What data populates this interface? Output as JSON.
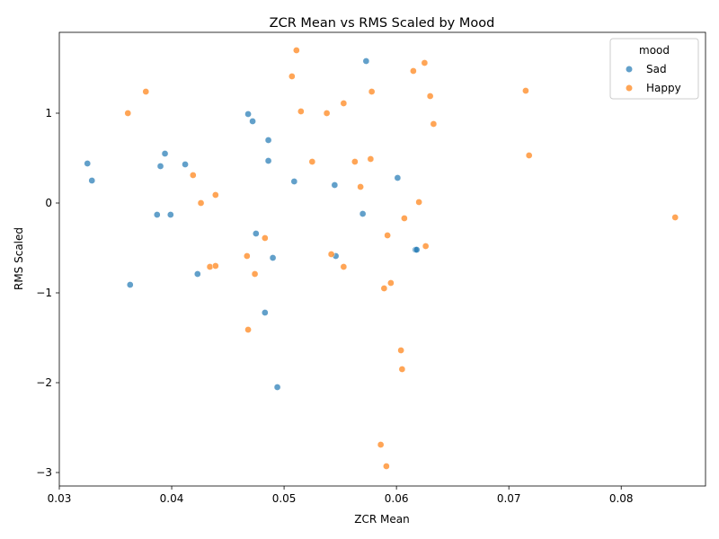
{
  "chart_data": {
    "type": "scatter",
    "title": "ZCR Mean vs RMS Scaled by Mood",
    "xlabel": "ZCR Mean",
    "ylabel": "RMS Scaled",
    "xlim": [
      0.03,
      0.0875
    ],
    "ylim": [
      -3.15,
      1.9
    ],
    "xticks": [
      0.03,
      0.04,
      0.05,
      0.06,
      0.07,
      0.08
    ],
    "xtick_labels": [
      "0.03",
      "0.04",
      "0.05",
      "0.06",
      "0.07",
      "0.08"
    ],
    "yticks": [
      -3,
      -2,
      -1,
      0,
      1
    ],
    "ytick_labels": [
      "−3",
      "−2",
      "−1",
      "0",
      "1"
    ],
    "grid": false,
    "legend": {
      "title": "mood",
      "placement": "top-right"
    },
    "series": [
      {
        "name": "Sad",
        "color": "#1f77b4",
        "points": [
          [
            0.0325,
            0.44
          ],
          [
            0.0329,
            0.25
          ],
          [
            0.0363,
            -0.91
          ],
          [
            0.0387,
            -0.13
          ],
          [
            0.039,
            0.41
          ],
          [
            0.0394,
            0.55
          ],
          [
            0.0399,
            -0.13
          ],
          [
            0.0412,
            0.43
          ],
          [
            0.0423,
            -0.79
          ],
          [
            0.0468,
            0.99
          ],
          [
            0.0472,
            0.91
          ],
          [
            0.0475,
            -0.34
          ],
          [
            0.0483,
            -1.22
          ],
          [
            0.0486,
            0.7
          ],
          [
            0.0486,
            0.47
          ],
          [
            0.049,
            -0.61
          ],
          [
            0.0494,
            -2.05
          ],
          [
            0.0509,
            0.24
          ],
          [
            0.0545,
            0.2
          ],
          [
            0.0546,
            -0.59
          ],
          [
            0.057,
            -0.12
          ],
          [
            0.0573,
            1.58
          ],
          [
            0.0601,
            0.28
          ],
          [
            0.0617,
            -0.52
          ],
          [
            0.0618,
            -0.52
          ]
        ]
      },
      {
        "name": "Happy",
        "color": "#ff7f0e",
        "points": [
          [
            0.0361,
            1.0
          ],
          [
            0.0377,
            1.24
          ],
          [
            0.0419,
            0.31
          ],
          [
            0.0426,
            0.0
          ],
          [
            0.0434,
            -0.71
          ],
          [
            0.0439,
            -0.7
          ],
          [
            0.0439,
            0.09
          ],
          [
            0.0467,
            -0.59
          ],
          [
            0.0468,
            -1.41
          ],
          [
            0.0474,
            -0.79
          ],
          [
            0.0483,
            -0.39
          ],
          [
            0.0507,
            1.41
          ],
          [
            0.0511,
            1.7
          ],
          [
            0.0515,
            1.02
          ],
          [
            0.0525,
            0.46
          ],
          [
            0.0538,
            1.0
          ],
          [
            0.0542,
            -0.57
          ],
          [
            0.0553,
            1.11
          ],
          [
            0.0553,
            -0.71
          ],
          [
            0.0563,
            0.46
          ],
          [
            0.0568,
            0.18
          ],
          [
            0.0577,
            0.49
          ],
          [
            0.0578,
            1.24
          ],
          [
            0.0586,
            -2.69
          ],
          [
            0.0589,
            -0.95
          ],
          [
            0.0591,
            -2.93
          ],
          [
            0.0592,
            -0.36
          ],
          [
            0.0595,
            -0.89
          ],
          [
            0.0604,
            -1.64
          ],
          [
            0.0605,
            -1.85
          ],
          [
            0.0607,
            -0.17
          ],
          [
            0.0615,
            1.47
          ],
          [
            0.062,
            0.01
          ],
          [
            0.0625,
            1.56
          ],
          [
            0.0626,
            -0.48
          ],
          [
            0.063,
            1.19
          ],
          [
            0.0633,
            0.88
          ],
          [
            0.0715,
            1.25
          ],
          [
            0.0718,
            0.53
          ],
          [
            0.0848,
            -0.16
          ]
        ]
      }
    ]
  }
}
